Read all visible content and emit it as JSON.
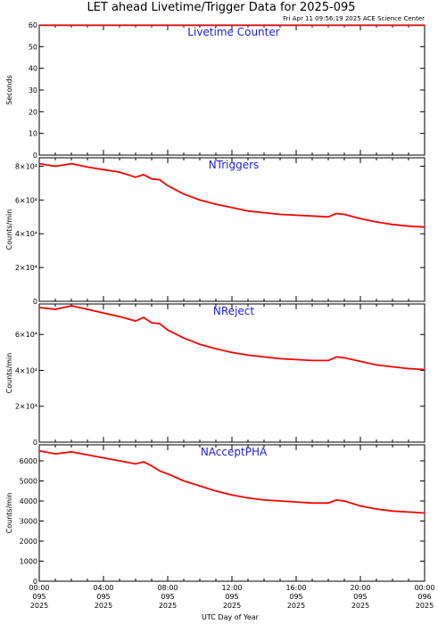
{
  "title": "LET ahead Livetime/Trigger Data for 2025-095",
  "subtitle": "Fri Apr 11 09:56:19 2025 ACE Science Center",
  "xlabel": "UTC Day of Year",
  "colors": {
    "line": "#ff0000",
    "panel_title": "#1f1fd0",
    "axes": "#000000"
  },
  "x_ticks": [
    {
      "time": "00:00",
      "doy": "095",
      "year": "2025"
    },
    {
      "time": "04:00",
      "doy": "095",
      "year": "2025"
    },
    {
      "time": "08:00",
      "doy": "095",
      "year": "2025"
    },
    {
      "time": "12:00",
      "doy": "095",
      "year": "2025"
    },
    {
      "time": "16:00",
      "doy": "095",
      "year": "2025"
    },
    {
      "time": "20:00",
      "doy": "095",
      "year": "2025"
    },
    {
      "time": "00:00",
      "doy": "096",
      "year": "2025"
    }
  ],
  "chart_data": [
    {
      "type": "line",
      "title": "Livetime Counter",
      "ylabel": "Seconds",
      "x_unit": "hours",
      "xlim": [
        0,
        24
      ],
      "ylim": [
        0,
        60
      ],
      "y_ticks": [
        0,
        10,
        20,
        30,
        40,
        50,
        60
      ],
      "y_tick_labels": [
        "0",
        "10",
        "20",
        "30",
        "40",
        "50",
        "60"
      ],
      "series": [
        {
          "x": [
            0,
            24
          ],
          "values": [
            59.8,
            59.8
          ]
        }
      ]
    },
    {
      "type": "line",
      "title": "NTriggers",
      "ylabel": "Counts/min",
      "x_unit": "hours",
      "xlim": [
        0,
        24
      ],
      "ylim": [
        0,
        85000
      ],
      "y_ticks": [
        0,
        20000,
        40000,
        60000,
        80000
      ],
      "y_tick_labels": [
        "0",
        "2×10⁴",
        "4×10⁴",
        "6×10⁴",
        "8×10⁴"
      ],
      "series": [
        {
          "x": [
            0,
            1,
            2,
            3,
            4,
            5,
            6,
            6.5,
            7,
            7.5,
            8,
            9,
            10,
            11,
            12,
            13,
            14,
            15,
            16,
            17,
            18,
            18.5,
            19,
            20,
            21,
            22,
            23,
            24
          ],
          "values": [
            81500,
            80000,
            81500,
            79500,
            78000,
            76500,
            73500,
            75000,
            72500,
            72000,
            68500,
            63500,
            60000,
            57500,
            55500,
            53500,
            52500,
            51500,
            51000,
            50500,
            50000,
            52000,
            51500,
            49000,
            47000,
            45500,
            44500,
            44000
          ]
        }
      ]
    },
    {
      "type": "line",
      "title": "NReject",
      "ylabel": "Counts/min",
      "x_unit": "hours",
      "xlim": [
        0,
        24
      ],
      "ylim": [
        0,
        77000
      ],
      "y_ticks": [
        0,
        20000,
        40000,
        60000
      ],
      "y_tick_labels": [
        "0",
        "2×10⁴",
        "4×10⁴",
        "6×10⁴"
      ],
      "series": [
        {
          "x": [
            0,
            1,
            2,
            3,
            4,
            5,
            6,
            6.5,
            7,
            7.5,
            8,
            9,
            10,
            11,
            12,
            13,
            14,
            15,
            16,
            17,
            18,
            18.5,
            19,
            20,
            21,
            22,
            23,
            24
          ],
          "values": [
            75000,
            74000,
            76000,
            74000,
            72000,
            70000,
            67500,
            69500,
            66500,
            66000,
            62500,
            58000,
            54500,
            52000,
            50000,
            48500,
            47500,
            46500,
            46000,
            45500,
            45500,
            47500,
            47000,
            45000,
            43000,
            42000,
            41000,
            40500
          ]
        }
      ]
    },
    {
      "type": "line",
      "title": "NAcceptPHA",
      "ylabel": "Counts/min",
      "x_unit": "hours",
      "xlim": [
        0,
        24
      ],
      "ylim": [
        0,
        6800
      ],
      "y_ticks": [
        0,
        1000,
        2000,
        3000,
        4000,
        5000,
        6000
      ],
      "y_tick_labels": [
        "0",
        "1000",
        "2000",
        "3000",
        "4000",
        "5000",
        "6000"
      ],
      "series": [
        {
          "x": [
            0,
            1,
            2,
            3,
            4,
            5,
            6,
            6.5,
            7,
            7.5,
            8,
            9,
            10,
            11,
            12,
            13,
            14,
            15,
            16,
            17,
            18,
            18.5,
            19,
            20,
            21,
            22,
            23,
            24
          ],
          "values": [
            6500,
            6350,
            6450,
            6300,
            6150,
            6000,
            5850,
            5950,
            5750,
            5500,
            5350,
            5000,
            4750,
            4500,
            4300,
            4150,
            4050,
            4000,
            3950,
            3900,
            3900,
            4050,
            4000,
            3750,
            3600,
            3500,
            3450,
            3400
          ]
        }
      ]
    }
  ]
}
